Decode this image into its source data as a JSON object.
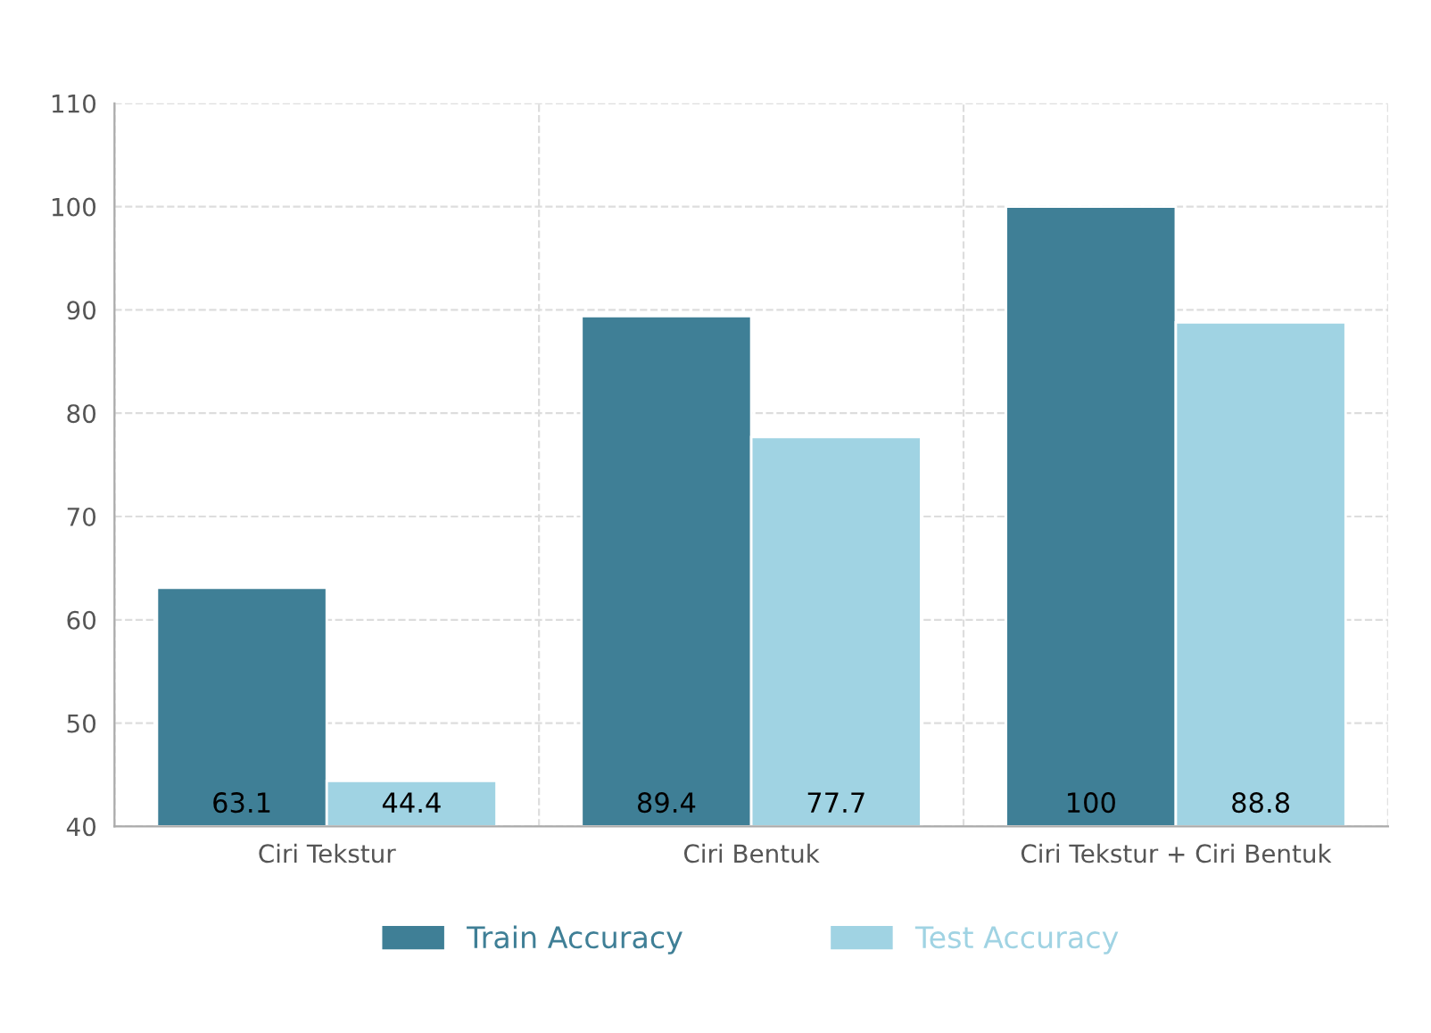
{
  "chart_data": {
    "type": "bar",
    "categories": [
      "Ciri Tekstur",
      "Ciri Bentuk",
      "Ciri Tekstur + Ciri Bentuk"
    ],
    "series": [
      {
        "name": "Train Accuracy",
        "color": "#3f7f96",
        "values": [
          63.1,
          89.4,
          100
        ]
      },
      {
        "name": "Test Accuracy",
        "color": "#a0d3e3",
        "values": [
          44.4,
          77.7,
          88.8
        ]
      }
    ],
    "ylim": [
      40,
      110
    ],
    "yticks": [
      40,
      50,
      60,
      70,
      80,
      90,
      100,
      110
    ],
    "grid": true,
    "legend": "bottom",
    "data_labels": true
  }
}
